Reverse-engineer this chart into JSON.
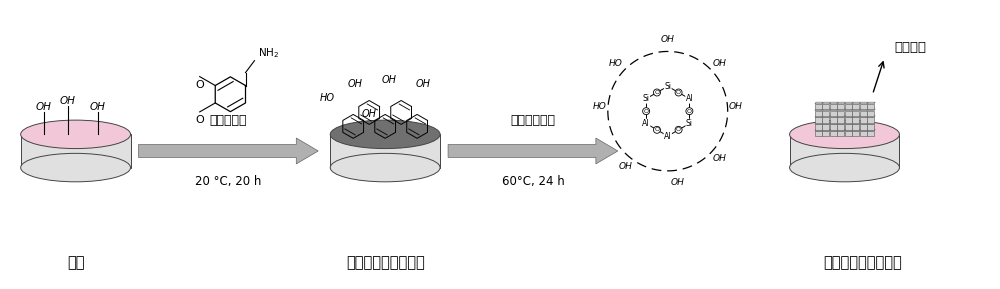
{
  "bg_color": "#ffffff",
  "label_carrier": "载体",
  "label_pda_carrier": "聚多巴胺修饰的载体",
  "label_membrane_carrier": "载体负载的分子筛膜",
  "label_arrow1_main": "多巴胺修饰",
  "label_arrow1_sub": "20 °C, 20 h",
  "label_arrow2_main": "原位水热合成",
  "label_arrow2_sub": "60°C, 24 h",
  "label_top_right": "分子筛膜",
  "cyl_side_color": "#e0e0e0",
  "cyl_top_pink": "#f2c8d8",
  "cyl_top_dark": "#707070",
  "arrow_color": "#b0b0b0",
  "font_size_label": 10,
  "font_size_arrow": 9
}
